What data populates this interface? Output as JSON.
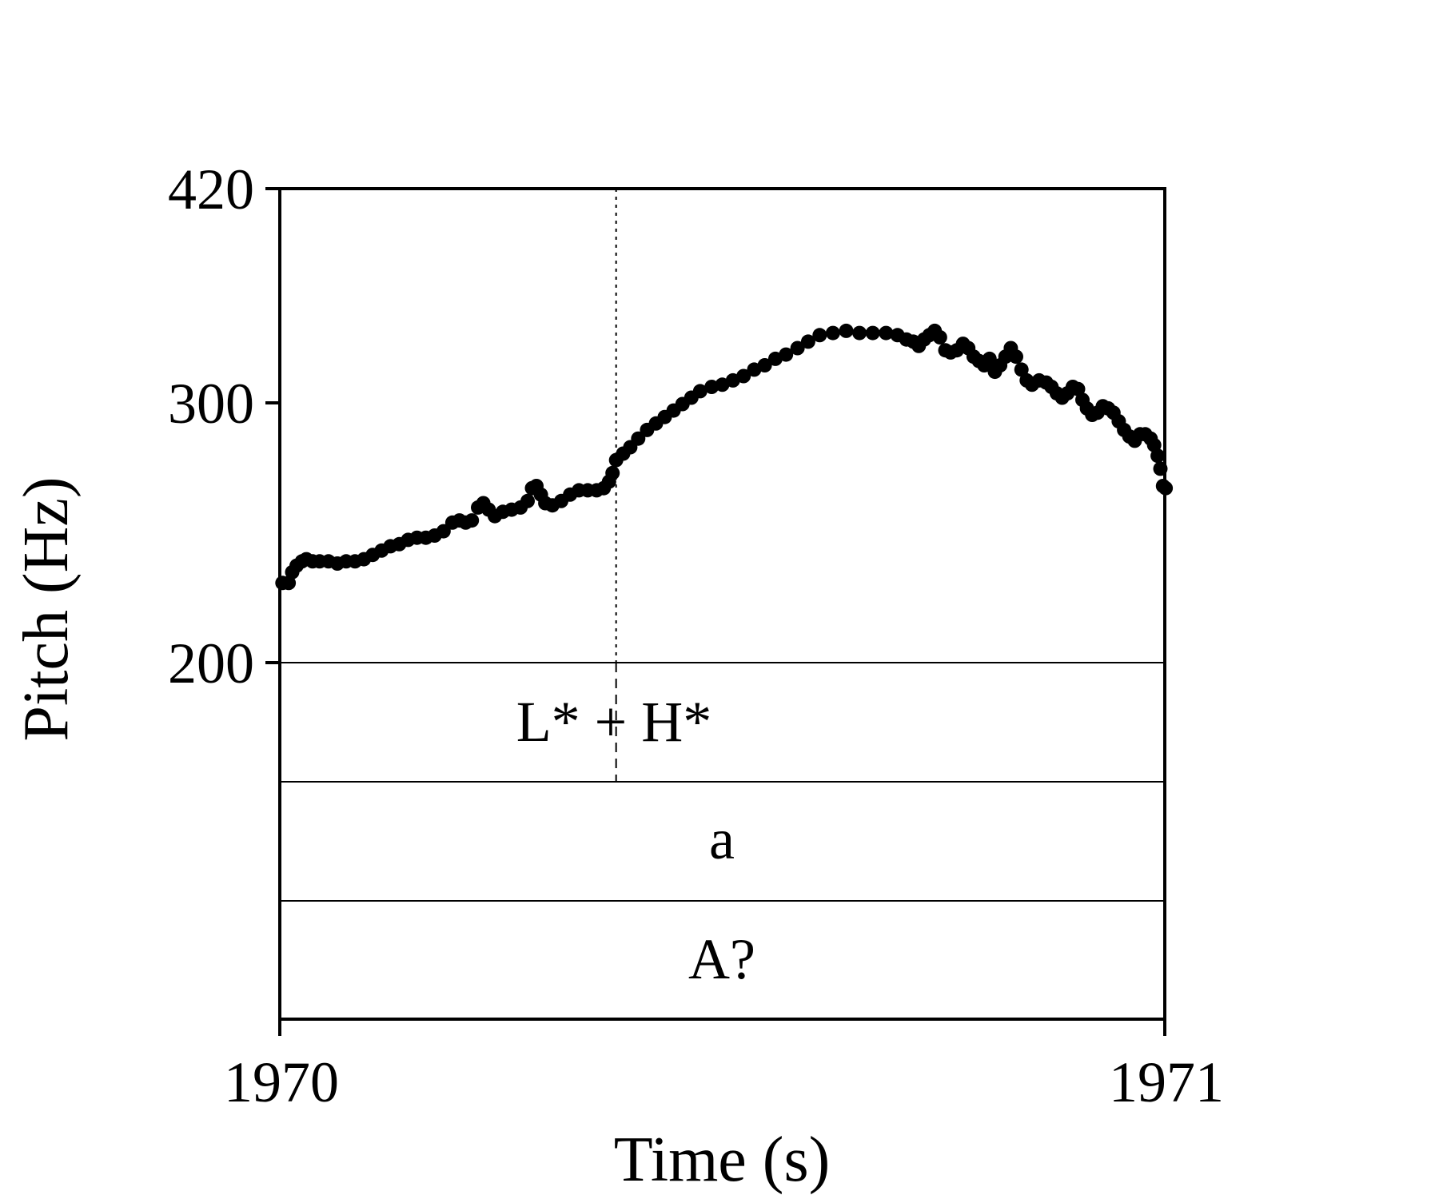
{
  "chart_data": {
    "type": "scatter",
    "xlabel": "Time (s)",
    "ylabel": "Pitch (Hz)",
    "xlim": [
      1970,
      1971
    ],
    "ylim": [
      200,
      420
    ],
    "x_ticks": [
      1970,
      1971
    ],
    "y_ticks": [
      200,
      300,
      420
    ],
    "tier_labels": [
      "L* + H*",
      "a",
      "A?"
    ],
    "boundary_x": 1970.38,
    "marker_color": "#000000",
    "series": [
      {
        "points": [
          [
            1970.003,
            237
          ],
          [
            1970.01,
            237
          ],
          [
            1970.014,
            242
          ],
          [
            1970.019,
            245
          ],
          [
            1970.025,
            247
          ],
          [
            1970.03,
            248
          ],
          [
            1970.037,
            247
          ],
          [
            1970.045,
            247
          ],
          [
            1970.055,
            247
          ],
          [
            1970.065,
            246
          ],
          [
            1970.075,
            247
          ],
          [
            1970.085,
            247
          ],
          [
            1970.095,
            248
          ],
          [
            1970.105,
            250
          ],
          [
            1970.115,
            252
          ],
          [
            1970.125,
            254
          ],
          [
            1970.135,
            255
          ],
          [
            1970.145,
            257
          ],
          [
            1970.155,
            258
          ],
          [
            1970.165,
            258
          ],
          [
            1970.175,
            259
          ],
          [
            1970.185,
            261
          ],
          [
            1970.195,
            265
          ],
          [
            1970.203,
            266
          ],
          [
            1970.21,
            265
          ],
          [
            1970.217,
            266
          ],
          [
            1970.224,
            272
          ],
          [
            1970.23,
            274
          ],
          [
            1970.236,
            271
          ],
          [
            1970.243,
            268
          ],
          [
            1970.252,
            270
          ],
          [
            1970.262,
            271
          ],
          [
            1970.272,
            272
          ],
          [
            1970.28,
            275
          ],
          [
            1970.285,
            281
          ],
          [
            1970.29,
            282
          ],
          [
            1970.295,
            278
          ],
          [
            1970.3,
            274
          ],
          [
            1970.308,
            273
          ],
          [
            1970.318,
            275
          ],
          [
            1970.328,
            278
          ],
          [
            1970.338,
            280
          ],
          [
            1970.348,
            280
          ],
          [
            1970.358,
            280
          ],
          [
            1970.366,
            281
          ],
          [
            1970.372,
            284
          ],
          [
            1970.376,
            288
          ],
          [
            1970.38,
            294
          ],
          [
            1970.388,
            297
          ],
          [
            1970.396,
            300
          ],
          [
            1970.405,
            304
          ],
          [
            1970.415,
            308
          ],
          [
            1970.425,
            311
          ],
          [
            1970.435,
            314
          ],
          [
            1970.445,
            317
          ],
          [
            1970.455,
            320
          ],
          [
            1970.465,
            323
          ],
          [
            1970.475,
            326
          ],
          [
            1970.488,
            328
          ],
          [
            1970.5,
            329
          ],
          [
            1970.512,
            331
          ],
          [
            1970.524,
            333
          ],
          [
            1970.536,
            336
          ],
          [
            1970.548,
            338
          ],
          [
            1970.56,
            341
          ],
          [
            1970.572,
            343
          ],
          [
            1970.585,
            346
          ],
          [
            1970.597,
            349
          ],
          [
            1970.61,
            352
          ],
          [
            1970.625,
            353
          ],
          [
            1970.64,
            354
          ],
          [
            1970.655,
            353
          ],
          [
            1970.67,
            353
          ],
          [
            1970.685,
            353
          ],
          [
            1970.698,
            352
          ],
          [
            1970.708,
            350
          ],
          [
            1970.716,
            349
          ],
          [
            1970.722,
            347
          ],
          [
            1970.728,
            350
          ],
          [
            1970.734,
            352
          ],
          [
            1970.74,
            354
          ],
          [
            1970.746,
            351
          ],
          [
            1970.752,
            345
          ],
          [
            1970.758,
            344
          ],
          [
            1970.765,
            345
          ],
          [
            1970.772,
            348
          ],
          [
            1970.778,
            346
          ],
          [
            1970.784,
            342
          ],
          [
            1970.79,
            340
          ],
          [
            1970.796,
            338
          ],
          [
            1970.802,
            341
          ],
          [
            1970.808,
            335
          ],
          [
            1970.814,
            338
          ],
          [
            1970.82,
            342
          ],
          [
            1970.826,
            346
          ],
          [
            1970.832,
            342
          ],
          [
            1970.838,
            336
          ],
          [
            1970.844,
            331
          ],
          [
            1970.85,
            329
          ],
          [
            1970.858,
            331
          ],
          [
            1970.866,
            330
          ],
          [
            1970.872,
            328
          ],
          [
            1970.878,
            325
          ],
          [
            1970.884,
            323
          ],
          [
            1970.89,
            325
          ],
          [
            1970.896,
            328
          ],
          [
            1970.902,
            327
          ],
          [
            1970.907,
            322
          ],
          [
            1970.912,
            318
          ],
          [
            1970.918,
            315
          ],
          [
            1970.924,
            316
          ],
          [
            1970.93,
            319
          ],
          [
            1970.936,
            318
          ],
          [
            1970.942,
            316
          ],
          [
            1970.948,
            312
          ],
          [
            1970.954,
            308
          ],
          [
            1970.96,
            305
          ],
          [
            1970.966,
            303
          ],
          [
            1970.972,
            306
          ],
          [
            1970.978,
            306
          ],
          [
            1970.984,
            304
          ],
          [
            1970.988,
            301
          ],
          [
            1970.992,
            296
          ],
          [
            1970.995,
            290
          ],
          [
            1970.998,
            282
          ],
          [
            1971.001,
            281
          ]
        ]
      }
    ]
  }
}
